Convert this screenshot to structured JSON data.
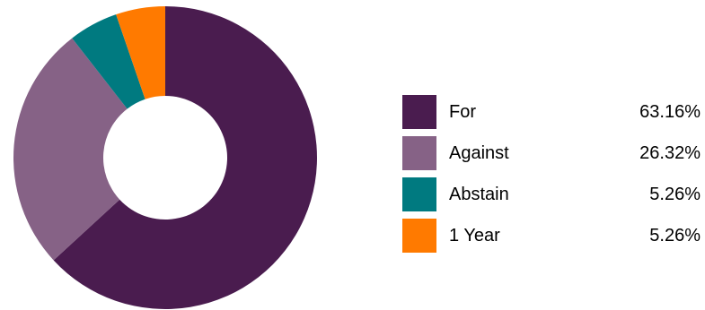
{
  "chart_data": {
    "type": "pie",
    "subtype": "donut",
    "title": "",
    "slices": [
      {
        "label": "For",
        "value": 63.16,
        "value_text": "63.16%",
        "color": "#4a1c4f"
      },
      {
        "label": "Against",
        "value": 26.32,
        "value_text": "26.32%",
        "color": "#866286"
      },
      {
        "label": "Abstain",
        "value": 5.26,
        "value_text": "5.26%",
        "color": "#007a80"
      },
      {
        "label": "1 Year",
        "value": 5.26,
        "value_text": "5.26%",
        "color": "#ff7a00"
      }
    ],
    "legend_position": "right"
  }
}
